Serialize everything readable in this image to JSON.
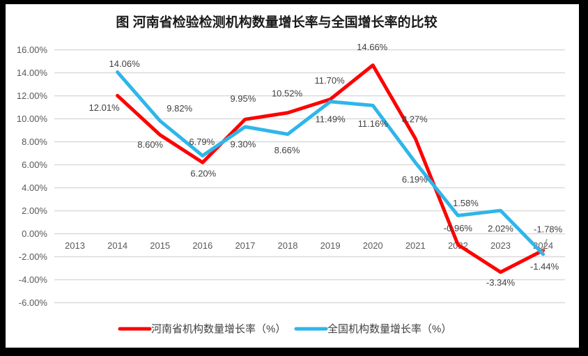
{
  "window": {
    "border_color": "#000000",
    "canvas_color": "#ffffff"
  },
  "chart_data": {
    "type": "line",
    "title": "图  河南省检验检测机构数量增长率与全国增长率的比较",
    "categories": [
      "2013",
      "2014",
      "2015",
      "2016",
      "2017",
      "2018",
      "2019",
      "2020",
      "2021",
      "2022",
      "2023",
      "2024"
    ],
    "grid": true,
    "legend_position": "bottom",
    "y_axis": {
      "min": -6,
      "max": 16,
      "step": 2,
      "unit": "%",
      "tick_labels": [
        "16.00%",
        "14.00%",
        "12.00%",
        "10.00%",
        "8.00%",
        "6.00%",
        "4.00%",
        "2.00%",
        "0.00%",
        "-2.00%",
        "-4.00%",
        "-6.00%"
      ]
    },
    "series": [
      {
        "name": "河南省机构数量增长率（%）",
        "color": "#ff0000",
        "values": [
          null,
          12.01,
          8.6,
          6.2,
          9.95,
          10.52,
          11.7,
          14.66,
          8.27,
          -0.96,
          -3.34,
          -1.44
        ],
        "data_labels": [
          null,
          "12.01%",
          "8.60%",
          "6.20%",
          "9.95%",
          "10.52%",
          "11.70%",
          "14.66%",
          "8.27%",
          "-0.96%",
          "-3.34%",
          "-1.44%"
        ],
        "label_offsets": [
          null,
          [
            -19,
            17
          ],
          [
            -14,
            14
          ],
          [
            1,
            16
          ],
          [
            -3,
            -30
          ],
          [
            -1,
            -28
          ],
          [
            -1,
            -27
          ],
          [
            -1,
            -26
          ],
          [
            -1,
            -28
          ],
          [
            0,
            -24
          ],
          [
            0,
            15
          ],
          [
            2,
            23
          ]
        ]
      },
      {
        "name": "全国机构数量增长率（%）",
        "color": "#2eb6ea",
        "values": [
          null,
          14.06,
          9.82,
          6.79,
          9.3,
          8.66,
          11.49,
          11.16,
          6.19,
          1.58,
          2.02,
          -1.78
        ],
        "data_labels": [
          null,
          "14.06%",
          "9.82%",
          "6.79%",
          "9.30%",
          "8.66%",
          "11.49%",
          "11.16%",
          "6.19%",
          "1.58%",
          "2.02%",
          "-1.78%"
        ],
        "label_offsets": [
          null,
          [
            10,
            -12
          ],
          [
            28,
            -18
          ],
          [
            -1,
            -20
          ],
          [
            -3,
            25
          ],
          [
            -1,
            23
          ],
          [
            0,
            25
          ],
          [
            0,
            26
          ],
          [
            -1,
            24
          ],
          [
            11,
            -18
          ],
          [
            0,
            26
          ],
          [
            7,
            -36
          ]
        ]
      }
    ],
    "colors": {
      "grid": "#d9d9d9",
      "tick_label": "#595959",
      "data_label": "#404040",
      "title": "#1a1a1a",
      "legend_label": "#404040",
      "stray_mark": "#9a9a9a"
    }
  }
}
